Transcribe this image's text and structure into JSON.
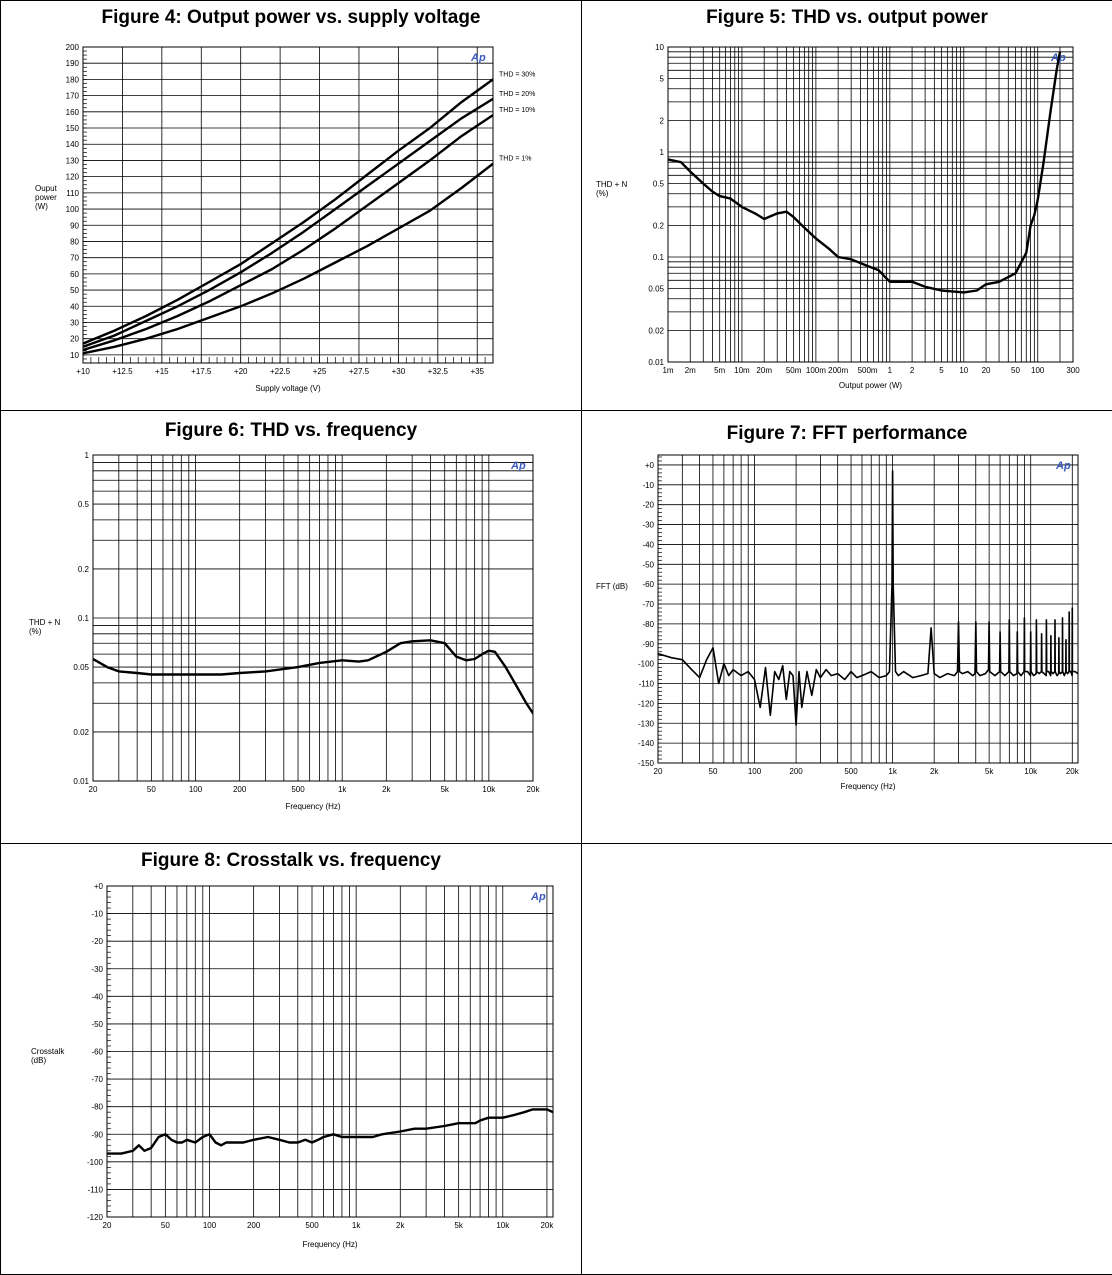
{
  "chart_data": [
    {
      "id": "fig4",
      "type": "line",
      "title": "Figure 4: Output power vs. supply voltage",
      "xlabel": "Supply voltage (V)",
      "ylabel": [
        "Ouput",
        "power",
        "(W)"
      ],
      "xscale": "linear",
      "yscale": "linear",
      "xlim": [
        10,
        36
      ],
      "ylim": [
        5,
        200
      ],
      "xticks": [
        10,
        12.5,
        15,
        17.5,
        20,
        22.5,
        25,
        27.5,
        30,
        32.5,
        35
      ],
      "xtick_labels": [
        "+10",
        "+12.5",
        "+15",
        "+17.5",
        "+20",
        "+22.5",
        "+25",
        "+27.5",
        "+30",
        "+32.5",
        "+35"
      ],
      "yticks": [
        10,
        20,
        30,
        40,
        50,
        60,
        70,
        80,
        90,
        100,
        110,
        120,
        130,
        140,
        150,
        160,
        170,
        180,
        190,
        200
      ],
      "ytick_labels": [
        "10",
        "20",
        "30",
        "40",
        "50",
        "60",
        "70",
        "80",
        "90",
        "100",
        "110",
        "120",
        "130",
        "140",
        "150",
        "160",
        "170",
        "180",
        "190",
        "200"
      ],
      "logo": "Ap",
      "series": [
        {
          "name": "THD = 30%",
          "x": [
            10,
            12,
            14,
            16,
            18,
            20,
            22,
            24,
            26,
            28,
            30,
            32,
            34,
            36
          ],
          "y": [
            17,
            25,
            34,
            44,
            55,
            66,
            79,
            92,
            106,
            121,
            136,
            150,
            166,
            180
          ]
        },
        {
          "name": "THD = 20%",
          "x": [
            10,
            12,
            14,
            16,
            18,
            20,
            22,
            24,
            26,
            28,
            30,
            32,
            34,
            36
          ],
          "y": [
            15,
            22,
            31,
            40,
            50,
            61,
            73,
            86,
            100,
            114,
            128,
            142,
            156,
            168
          ]
        },
        {
          "name": "THD = 10%",
          "x": [
            10,
            12,
            14,
            16,
            18,
            20,
            22,
            24,
            26,
            28,
            30,
            32,
            34,
            36
          ],
          "y": [
            13,
            19,
            26,
            34,
            43,
            53,
            63,
            75,
            88,
            102,
            116,
            130,
            145,
            158
          ]
        },
        {
          "name": "THD = 1%",
          "x": [
            10,
            12,
            14,
            16,
            18,
            20,
            22,
            24,
            26,
            28,
            30,
            32,
            34,
            36
          ],
          "y": [
            11,
            15,
            20,
            26,
            33,
            40,
            48,
            57,
            67,
            77,
            88,
            99,
            113,
            128
          ]
        }
      ]
    },
    {
      "id": "fig5",
      "type": "line",
      "title": "Figure 5: THD vs. output power",
      "xlabel": "Output power (W)",
      "ylabel": [
        "THD + N",
        "(%)"
      ],
      "xscale": "log",
      "yscale": "log",
      "xlim": [
        0.001,
        300
      ],
      "ylim": [
        0.01,
        10
      ],
      "xticks": [
        0.001,
        0.002,
        0.005,
        0.01,
        0.02,
        0.05,
        0.1,
        0.2,
        0.5,
        1,
        2,
        5,
        10,
        20,
        50,
        100,
        300
      ],
      "xtick_labels": [
        "1m",
        "2m",
        "5m",
        "10m",
        "20m",
        "50m",
        "100m",
        "200m",
        "500m",
        "1",
        "2",
        "5",
        "10",
        "20",
        "50",
        "100",
        "300"
      ],
      "yticks": [
        0.01,
        0.02,
        0.05,
        0.1,
        0.2,
        0.5,
        1,
        2,
        5,
        10
      ],
      "ytick_labels": [
        "0.01",
        "0.02",
        "0.05",
        "0.1",
        "0.2",
        "0.5",
        "1",
        "2",
        "5",
        "10"
      ],
      "logo": "Ap",
      "series": [
        {
          "x": [
            0.001,
            0.0015,
            0.002,
            0.003,
            0.004,
            0.005,
            0.007,
            0.01,
            0.015,
            0.02,
            0.03,
            0.04,
            0.05,
            0.07,
            0.1,
            0.15,
            0.2,
            0.3,
            0.5,
            0.7,
            1,
            2,
            3,
            5,
            7,
            10,
            15,
            20,
            30,
            50,
            70,
            80,
            90,
            100,
            120,
            150,
            180,
            200
          ],
          "y": [
            0.85,
            0.8,
            0.65,
            0.5,
            0.42,
            0.38,
            0.36,
            0.3,
            0.26,
            0.23,
            0.26,
            0.27,
            0.24,
            0.19,
            0.15,
            0.12,
            0.1,
            0.095,
            0.082,
            0.075,
            0.058,
            0.058,
            0.052,
            0.048,
            0.047,
            0.046,
            0.048,
            0.055,
            0.058,
            0.07,
            0.11,
            0.2,
            0.25,
            0.35,
            0.8,
            2.5,
            6,
            9
          ]
        }
      ]
    },
    {
      "id": "fig6",
      "type": "line",
      "title": "Figure 6: THD vs. frequency",
      "xlabel": "Frequency (Hz)",
      "ylabel": [
        "THD + N",
        "(%)"
      ],
      "xscale": "log",
      "yscale": "log",
      "xlim": [
        20,
        20000
      ],
      "ylim": [
        0.01,
        1
      ],
      "xticks": [
        20,
        50,
        100,
        200,
        500,
        1000,
        2000,
        5000,
        10000,
        20000
      ],
      "xtick_labels": [
        "20",
        "50",
        "100",
        "200",
        "500",
        "1k",
        "2k",
        "5k",
        "10k",
        "20k"
      ],
      "yticks": [
        0.01,
        0.02,
        0.05,
        0.1,
        0.2,
        0.5,
        1
      ],
      "ytick_labels": [
        "0.01",
        "0.02",
        "0.05",
        "0.1",
        "0.2",
        "0.5",
        "1"
      ],
      "logo": "Ap",
      "series": [
        {
          "x": [
            20,
            25,
            30,
            40,
            50,
            70,
            100,
            150,
            200,
            300,
            500,
            700,
            1000,
            1300,
            1500,
            2000,
            2500,
            3000,
            4000,
            5000,
            6000,
            7000,
            8000,
            9000,
            10000,
            11000,
            13000,
            15000,
            18000,
            20000,
            22000
          ],
          "y": [
            0.056,
            0.05,
            0.047,
            0.046,
            0.045,
            0.045,
            0.045,
            0.045,
            0.046,
            0.047,
            0.05,
            0.053,
            0.055,
            0.054,
            0.055,
            0.062,
            0.07,
            0.072,
            0.073,
            0.07,
            0.058,
            0.055,
            0.056,
            0.06,
            0.063,
            0.062,
            0.05,
            0.04,
            0.03,
            0.026,
            0.029
          ]
        }
      ]
    },
    {
      "id": "fig7",
      "type": "line",
      "title": "Figure 7: FFT performance",
      "xlabel": "Frequency (Hz)",
      "ylabel": [
        "FFT (dB)"
      ],
      "xscale": "log",
      "yscale": "linear",
      "xlim": [
        20,
        22000
      ],
      "ylim": [
        -150,
        5
      ],
      "xticks": [
        20,
        50,
        100,
        200,
        500,
        1000,
        2000,
        5000,
        10000,
        20000
      ],
      "xtick_labels": [
        "20",
        "50",
        "100",
        "200",
        "500",
        "1k",
        "2k",
        "5k",
        "10k",
        "20k"
      ],
      "yticks": [
        0,
        -10,
        -20,
        -30,
        -40,
        -50,
        -60,
        -70,
        -80,
        -90,
        -100,
        -110,
        -120,
        -130,
        -140,
        -150
      ],
      "ytick_labels": [
        "+0",
        "-10",
        "-20",
        "-30",
        "-40",
        "-50",
        "-60",
        "-70",
        "-80",
        "-90",
        "-100",
        "-110",
        "-120",
        "-130",
        "-140",
        "-150"
      ],
      "logo": "Ap",
      "series": [
        {
          "x": [
            20,
            25,
            30,
            35,
            40,
            45,
            50,
            55,
            60,
            65,
            70,
            80,
            90,
            100,
            110,
            120,
            130,
            140,
            150,
            160,
            170,
            180,
            190,
            200,
            210,
            220,
            240,
            260,
            280,
            300,
            330,
            360,
            400,
            450,
            500,
            550,
            600,
            700,
            800,
            900,
            950,
            990,
            1000,
            1010,
            1050,
            1100,
            1200,
            1400,
            1600,
            1800,
            1900,
            2000,
            2100,
            2200,
            2500,
            2800,
            2950,
            3000,
            3050,
            3200,
            3500,
            3800,
            3950,
            4000,
            4050,
            4300,
            4700,
            4950,
            5000,
            5050,
            5500,
            5950,
            6000,
            6050,
            6500,
            6950,
            7000,
            7050,
            7500,
            7950,
            8000,
            8050,
            8500,
            8950,
            9000,
            9050,
            9500,
            9950,
            10000,
            10050,
            10500,
            10950,
            11000,
            11050,
            11500,
            11950,
            12000,
            12050,
            12500,
            12950,
            13000,
            13050,
            13500,
            13950,
            14000,
            14050,
            14500,
            14950,
            15000,
            15050,
            15500,
            15950,
            16000,
            16050,
            16500,
            16950,
            17000,
            17050,
            17500,
            17950,
            18000,
            18050,
            18500,
            18950,
            19000,
            19050,
            19500,
            19950,
            20000,
            20050,
            21000,
            22000
          ],
          "y": [
            -95,
            -97,
            -98,
            -103,
            -107,
            -98,
            -92,
            -110,
            -100,
            -106,
            -103,
            -106,
            -104,
            -108,
            -122,
            -102,
            -126,
            -104,
            -108,
            -101,
            -118,
            -104,
            -106,
            -131,
            -104,
            -122,
            -104,
            -116,
            -103,
            -107,
            -103,
            -106,
            -105,
            -108,
            -104,
            -107,
            -106,
            -104,
            -107,
            -106,
            -104,
            -60,
            -3,
            -60,
            -104,
            -106,
            -104,
            -107,
            -106,
            -105,
            -82,
            -105,
            -106,
            -107,
            -105,
            -106,
            -104,
            -79,
            -104,
            -105,
            -104,
            -106,
            -105,
            -79,
            -104,
            -106,
            -105,
            -103,
            -79,
            -104,
            -106,
            -104,
            -84,
            -104,
            -106,
            -104,
            -78,
            -104,
            -106,
            -105,
            -84,
            -104,
            -106,
            -104,
            -77,
            -104,
            -104,
            -106,
            -84,
            -104,
            -106,
            -105,
            -78,
            -104,
            -105,
            -104,
            -85,
            -104,
            -105,
            -106,
            -78,
            -104,
            -104,
            -106,
            -86,
            -104,
            -105,
            -104,
            -78,
            -104,
            -106,
            -105,
            -87,
            -104,
            -105,
            -104,
            -77,
            -104,
            -106,
            -104,
            -88,
            -104,
            -105,
            -104,
            -74,
            -104,
            -104,
            -106,
            -72,
            -104,
            -104,
            -105
          ]
        }
      ]
    },
    {
      "id": "fig8",
      "type": "line",
      "title": "Figure 8: Crosstalk vs. frequency",
      "xlabel": "Frequency (Hz)",
      "ylabel": [
        "Crosstalk",
        "(dB)"
      ],
      "xscale": "log",
      "yscale": "linear",
      "xlim": [
        20,
        22000
      ],
      "ylim": [
        -120,
        0
      ],
      "xticks": [
        20,
        50,
        100,
        200,
        500,
        1000,
        2000,
        5000,
        10000,
        20000
      ],
      "xtick_labels": [
        "20",
        "50",
        "100",
        "200",
        "500",
        "1k",
        "2k",
        "5k",
        "10k",
        "20k"
      ],
      "yticks": [
        0,
        -10,
        -20,
        -30,
        -40,
        -50,
        -60,
        -70,
        -80,
        -90,
        -100,
        -110,
        -120
      ],
      "ytick_labels": [
        "+0",
        "-10",
        "-20",
        "-30",
        "-40",
        "-50",
        "-60",
        "-70",
        "-80",
        "-90",
        "-100",
        "-110",
        "-120"
      ],
      "logo": "Ap",
      "series": [
        {
          "x": [
            20,
            25,
            30,
            33,
            36,
            40,
            45,
            50,
            55,
            60,
            65,
            70,
            80,
            90,
            100,
            110,
            120,
            130,
            150,
            170,
            200,
            250,
            300,
            350,
            400,
            450,
            500,
            550,
            600,
            700,
            800,
            1000,
            1300,
            1500,
            2000,
            2500,
            3000,
            4000,
            5000,
            6000,
            6500,
            7000,
            8000,
            9000,
            10000,
            12000,
            14000,
            16000,
            18000,
            20000,
            22000
          ],
          "y": [
            -97,
            -97,
            -96,
            -94,
            -96,
            -95,
            -91,
            -90,
            -92,
            -93,
            -93,
            -92,
            -93,
            -91,
            -90,
            -93,
            -94,
            -93,
            -93,
            -93,
            -92,
            -91,
            -92,
            -93,
            -93,
            -92,
            -93,
            -92,
            -91,
            -90,
            -91,
            -91,
            -91,
            -90,
            -89,
            -88,
            -88,
            -87,
            -86,
            -86,
            -86,
            -85,
            -84,
            -84,
            -84,
            -83,
            -82,
            -81,
            -81,
            -81,
            -82
          ]
        }
      ]
    }
  ]
}
